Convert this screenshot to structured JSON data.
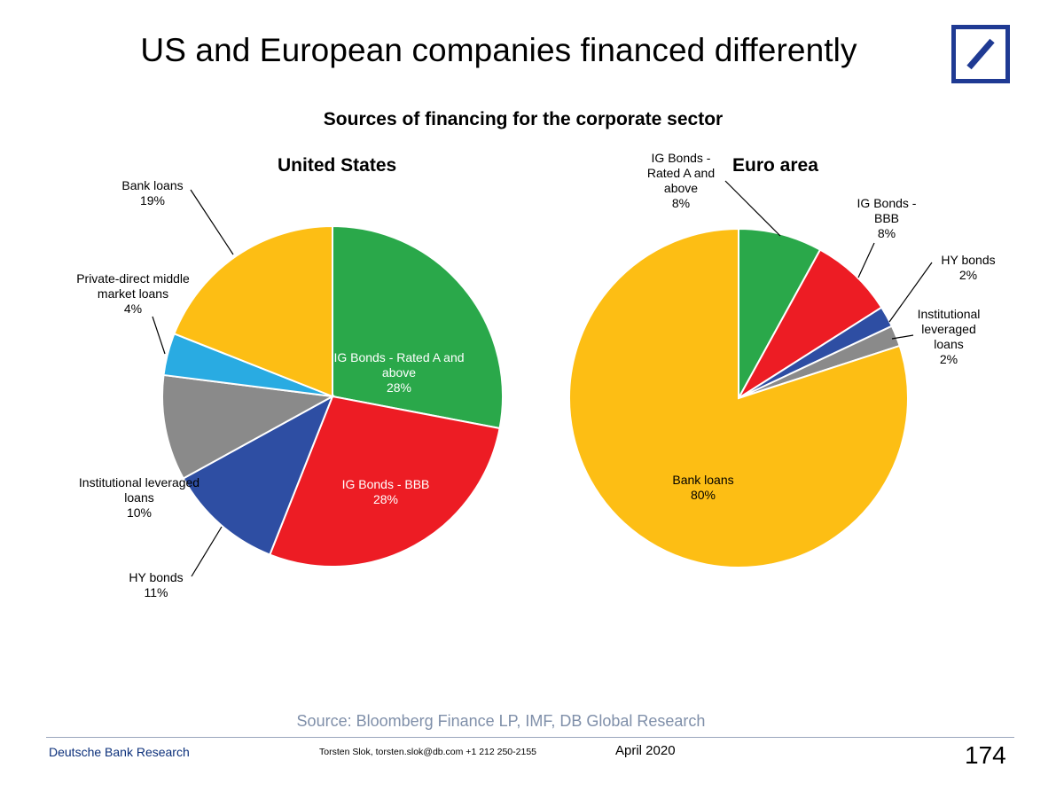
{
  "slide": {
    "title": "US and European companies financed differently",
    "source": "Source: Bloomberg Finance LP, IMF, DB Global Research"
  },
  "footer": {
    "brand": "Deutsche Bank Research",
    "author": "Torsten Slok, torsten.slok@db.com  +1 212 250-2155",
    "date": "April 2020",
    "page": "174"
  },
  "colors": {
    "ig_a": "#2aa84a",
    "ig_bbb": "#ed1c24",
    "hy": "#2e4ea3",
    "inst": "#8a8a8a",
    "private": "#29abe2",
    "bank": "#fdbe14",
    "logo": "#1f3a93"
  },
  "chart_data": {
    "type": "pie",
    "title": "Sources of financing for the corporate sector",
    "charts": [
      {
        "title": "United States",
        "slices": [
          {
            "label": "IG Bonds - Rated A and above",
            "value": 28,
            "value_label": "28%",
            "color": "#2aa84a"
          },
          {
            "label": "IG Bonds - BBB",
            "value": 28,
            "value_label": "28%",
            "color": "#ed1c24"
          },
          {
            "label": "HY bonds",
            "value": 11,
            "value_label": "11%",
            "color": "#2e4ea3"
          },
          {
            "label": "Institutional leveraged loans",
            "value": 10,
            "value_label": "10%",
            "color": "#8a8a8a"
          },
          {
            "label": "Private-direct middle market loans",
            "value": 4,
            "value_label": "4%",
            "color": "#29abe2"
          },
          {
            "label": "Bank loans",
            "value": 19,
            "value_label": "19%",
            "color": "#fdbe14"
          }
        ]
      },
      {
        "title": "Euro area",
        "slices": [
          {
            "label": "IG Bonds - Rated A and above",
            "value": 8,
            "value_label": "8%",
            "color": "#2aa84a"
          },
          {
            "label": "IG Bonds - BBB",
            "value": 8,
            "value_label": "8%",
            "color": "#ed1c24"
          },
          {
            "label": "HY bonds",
            "value": 2,
            "value_label": "2%",
            "color": "#2e4ea3"
          },
          {
            "label": "Institutional leveraged loans",
            "value": 2,
            "value_label": "2%",
            "color": "#8a8a8a"
          },
          {
            "label": "Bank loans",
            "value": 80,
            "value_label": "80%",
            "color": "#fdbe14"
          }
        ]
      }
    ]
  }
}
